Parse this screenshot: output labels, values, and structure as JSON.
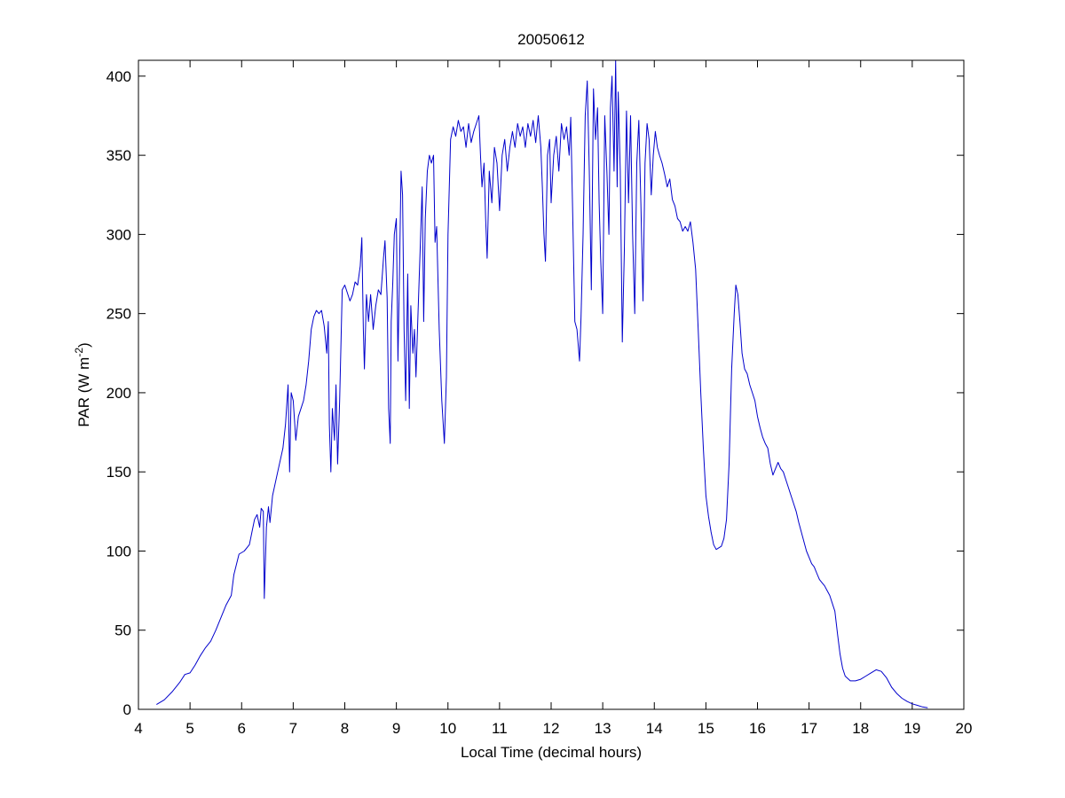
{
  "chart_data": {
    "type": "line",
    "title": "20050612",
    "xlabel": "Local Time (decimal hours)",
    "ylabel": {
      "main": "PAR (W m",
      "sup": "-2",
      "close": ")"
    },
    "xlim": [
      4,
      20
    ],
    "ylim": [
      0,
      410
    ],
    "xticks": [
      4,
      5,
      6,
      7,
      8,
      9,
      10,
      11,
      12,
      13,
      14,
      15,
      16,
      17,
      18,
      19,
      20
    ],
    "yticks": [
      0,
      50,
      100,
      150,
      200,
      250,
      300,
      350,
      400
    ],
    "grid": false,
    "legend": "none",
    "series": [
      {
        "color": "#0000cc",
        "points": [
          [
            4.35,
            3
          ],
          [
            4.5,
            6
          ],
          [
            4.65,
            11
          ],
          [
            4.8,
            17
          ],
          [
            4.9,
            22
          ],
          [
            5.0,
            23
          ],
          [
            5.1,
            28
          ],
          [
            5.2,
            34
          ],
          [
            5.3,
            39
          ],
          [
            5.4,
            43
          ],
          [
            5.5,
            50
          ],
          [
            5.6,
            58
          ],
          [
            5.7,
            66
          ],
          [
            5.8,
            72
          ],
          [
            5.85,
            85
          ],
          [
            5.95,
            98
          ],
          [
            6.05,
            100
          ],
          [
            6.15,
            104
          ],
          [
            6.2,
            112
          ],
          [
            6.25,
            120
          ],
          [
            6.3,
            123
          ],
          [
            6.35,
            115
          ],
          [
            6.38,
            127
          ],
          [
            6.42,
            125
          ],
          [
            6.44,
            70
          ],
          [
            6.48,
            115
          ],
          [
            6.52,
            128
          ],
          [
            6.55,
            118
          ],
          [
            6.6,
            135
          ],
          [
            6.7,
            150
          ],
          [
            6.8,
            165
          ],
          [
            6.85,
            180
          ],
          [
            6.9,
            205
          ],
          [
            6.93,
            150
          ],
          [
            6.96,
            200
          ],
          [
            7.0,
            195
          ],
          [
            7.05,
            170
          ],
          [
            7.1,
            185
          ],
          [
            7.15,
            190
          ],
          [
            7.2,
            195
          ],
          [
            7.25,
            205
          ],
          [
            7.3,
            220
          ],
          [
            7.35,
            240
          ],
          [
            7.4,
            248
          ],
          [
            7.45,
            252
          ],
          [
            7.5,
            250
          ],
          [
            7.55,
            252
          ],
          [
            7.6,
            242
          ],
          [
            7.65,
            225
          ],
          [
            7.68,
            245
          ],
          [
            7.7,
            180
          ],
          [
            7.73,
            150
          ],
          [
            7.76,
            190
          ],
          [
            7.8,
            170
          ],
          [
            7.83,
            205
          ],
          [
            7.86,
            155
          ],
          [
            7.9,
            195
          ],
          [
            7.95,
            265
          ],
          [
            8.0,
            268
          ],
          [
            8.05,
            263
          ],
          [
            8.1,
            258
          ],
          [
            8.15,
            262
          ],
          [
            8.2,
            270
          ],
          [
            8.25,
            268
          ],
          [
            8.3,
            280
          ],
          [
            8.33,
            298
          ],
          [
            8.36,
            240
          ],
          [
            8.38,
            215
          ],
          [
            8.42,
            262
          ],
          [
            8.46,
            245
          ],
          [
            8.5,
            262
          ],
          [
            8.55,
            240
          ],
          [
            8.6,
            255
          ],
          [
            8.65,
            265
          ],
          [
            8.7,
            262
          ],
          [
            8.75,
            285
          ],
          [
            8.78,
            296
          ],
          [
            8.82,
            260
          ],
          [
            8.85,
            190
          ],
          [
            8.88,
            168
          ],
          [
            8.9,
            245
          ],
          [
            8.93,
            270
          ],
          [
            8.96,
            300
          ],
          [
            9.0,
            310
          ],
          [
            9.03,
            220
          ],
          [
            9.06,
            275
          ],
          [
            9.09,
            340
          ],
          [
            9.12,
            325
          ],
          [
            9.15,
            240
          ],
          [
            9.18,
            195
          ],
          [
            9.22,
            275
          ],
          [
            9.25,
            190
          ],
          [
            9.28,
            255
          ],
          [
            9.32,
            225
          ],
          [
            9.35,
            240
          ],
          [
            9.38,
            210
          ],
          [
            9.42,
            250
          ],
          [
            9.46,
            290
          ],
          [
            9.5,
            330
          ],
          [
            9.53,
            245
          ],
          [
            9.56,
            310
          ],
          [
            9.6,
            340
          ],
          [
            9.64,
            350
          ],
          [
            9.68,
            345
          ],
          [
            9.72,
            350
          ],
          [
            9.75,
            295
          ],
          [
            9.78,
            305
          ],
          [
            9.83,
            240
          ],
          [
            9.88,
            195
          ],
          [
            9.93,
            168
          ],
          [
            9.97,
            210
          ],
          [
            10.0,
            300
          ],
          [
            10.05,
            360
          ],
          [
            10.1,
            368
          ],
          [
            10.15,
            362
          ],
          [
            10.2,
            372
          ],
          [
            10.25,
            365
          ],
          [
            10.3,
            368
          ],
          [
            10.35,
            355
          ],
          [
            10.4,
            370
          ],
          [
            10.45,
            358
          ],
          [
            10.5,
            365
          ],
          [
            10.55,
            370
          ],
          [
            10.6,
            375
          ],
          [
            10.63,
            350
          ],
          [
            10.66,
            330
          ],
          [
            10.7,
            345
          ],
          [
            10.73,
            310
          ],
          [
            10.76,
            285
          ],
          [
            10.8,
            340
          ],
          [
            10.85,
            320
          ],
          [
            10.9,
            355
          ],
          [
            10.95,
            345
          ],
          [
            11.0,
            315
          ],
          [
            11.05,
            350
          ],
          [
            11.1,
            360
          ],
          [
            11.15,
            340
          ],
          [
            11.2,
            355
          ],
          [
            11.25,
            365
          ],
          [
            11.3,
            355
          ],
          [
            11.35,
            370
          ],
          [
            11.4,
            362
          ],
          [
            11.45,
            368
          ],
          [
            11.5,
            355
          ],
          [
            11.55,
            370
          ],
          [
            11.6,
            362
          ],
          [
            11.65,
            372
          ],
          [
            11.7,
            358
          ],
          [
            11.75,
            375
          ],
          [
            11.8,
            355
          ],
          [
            11.83,
            330
          ],
          [
            11.86,
            300
          ],
          [
            11.89,
            283
          ],
          [
            11.93,
            350
          ],
          [
            11.97,
            360
          ],
          [
            12.0,
            320
          ],
          [
            12.05,
            350
          ],
          [
            12.1,
            362
          ],
          [
            12.15,
            340
          ],
          [
            12.2,
            370
          ],
          [
            12.25,
            360
          ],
          [
            12.3,
            368
          ],
          [
            12.35,
            350
          ],
          [
            12.38,
            374
          ],
          [
            12.42,
            310
          ],
          [
            12.46,
            245
          ],
          [
            12.5,
            240
          ],
          [
            12.55,
            220
          ],
          [
            12.58,
            248
          ],
          [
            12.62,
            300
          ],
          [
            12.66,
            375
          ],
          [
            12.7,
            397
          ],
          [
            12.74,
            340
          ],
          [
            12.78,
            265
          ],
          [
            12.82,
            392
          ],
          [
            12.86,
            360
          ],
          [
            12.9,
            380
          ],
          [
            12.93,
            320
          ],
          [
            12.96,
            285
          ],
          [
            13.0,
            250
          ],
          [
            13.04,
            375
          ],
          [
            13.08,
            340
          ],
          [
            13.12,
            300
          ],
          [
            13.15,
            380
          ],
          [
            13.18,
            400
          ],
          [
            13.22,
            340
          ],
          [
            13.25,
            410
          ],
          [
            13.28,
            330
          ],
          [
            13.3,
            390
          ],
          [
            13.34,
            340
          ],
          [
            13.38,
            232
          ],
          [
            13.42,
            290
          ],
          [
            13.46,
            378
          ],
          [
            13.5,
            320
          ],
          [
            13.54,
            375
          ],
          [
            13.58,
            300
          ],
          [
            13.62,
            250
          ],
          [
            13.66,
            345
          ],
          [
            13.7,
            372
          ],
          [
            13.74,
            320
          ],
          [
            13.78,
            258
          ],
          [
            13.82,
            345
          ],
          [
            13.86,
            370
          ],
          [
            13.9,
            360
          ],
          [
            13.94,
            325
          ],
          [
            13.98,
            350
          ],
          [
            14.02,
            365
          ],
          [
            14.06,
            355
          ],
          [
            14.1,
            350
          ],
          [
            14.15,
            345
          ],
          [
            14.2,
            338
          ],
          [
            14.25,
            330
          ],
          [
            14.3,
            335
          ],
          [
            14.35,
            322
          ],
          [
            14.4,
            318
          ],
          [
            14.45,
            310
          ],
          [
            14.5,
            308
          ],
          [
            14.55,
            302
          ],
          [
            14.6,
            305
          ],
          [
            14.65,
            302
          ],
          [
            14.7,
            308
          ],
          [
            14.75,
            295
          ],
          [
            14.8,
            278
          ],
          [
            14.85,
            240
          ],
          [
            14.9,
            200
          ],
          [
            14.95,
            165
          ],
          [
            15.0,
            135
          ],
          [
            15.05,
            122
          ],
          [
            15.1,
            112
          ],
          [
            15.15,
            104
          ],
          [
            15.2,
            101
          ],
          [
            15.3,
            103
          ],
          [
            15.35,
            108
          ],
          [
            15.4,
            120
          ],
          [
            15.45,
            155
          ],
          [
            15.5,
            215
          ],
          [
            15.55,
            250
          ],
          [
            15.58,
            268
          ],
          [
            15.62,
            262
          ],
          [
            15.66,
            245
          ],
          [
            15.7,
            225
          ],
          [
            15.75,
            215
          ],
          [
            15.8,
            212
          ],
          [
            15.85,
            205
          ],
          [
            15.9,
            200
          ],
          [
            15.95,
            195
          ],
          [
            16.0,
            185
          ],
          [
            16.05,
            178
          ],
          [
            16.1,
            172
          ],
          [
            16.15,
            168
          ],
          [
            16.2,
            165
          ],
          [
            16.25,
            155
          ],
          [
            16.3,
            148
          ],
          [
            16.35,
            152
          ],
          [
            16.4,
            156
          ],
          [
            16.45,
            152
          ],
          [
            16.5,
            150
          ],
          [
            16.55,
            145
          ],
          [
            16.6,
            140
          ],
          [
            16.65,
            135
          ],
          [
            16.7,
            130
          ],
          [
            16.75,
            125
          ],
          [
            16.8,
            118
          ],
          [
            16.85,
            112
          ],
          [
            16.9,
            106
          ],
          [
            16.95,
            100
          ],
          [
            17.0,
            96
          ],
          [
            17.05,
            92
          ],
          [
            17.1,
            90
          ],
          [
            17.15,
            86
          ],
          [
            17.2,
            82
          ],
          [
            17.25,
            80
          ],
          [
            17.3,
            78
          ],
          [
            17.35,
            75
          ],
          [
            17.4,
            72
          ],
          [
            17.5,
            62
          ],
          [
            17.55,
            48
          ],
          [
            17.6,
            35
          ],
          [
            17.65,
            26
          ],
          [
            17.7,
            21
          ],
          [
            17.8,
            18
          ],
          [
            17.9,
            18
          ],
          [
            18.0,
            19
          ],
          [
            18.1,
            21
          ],
          [
            18.2,
            23
          ],
          [
            18.3,
            25
          ],
          [
            18.4,
            24
          ],
          [
            18.5,
            20
          ],
          [
            18.6,
            14
          ],
          [
            18.7,
            10
          ],
          [
            18.8,
            7
          ],
          [
            18.9,
            5
          ],
          [
            19.0,
            3.5
          ],
          [
            19.1,
            2.5
          ],
          [
            19.2,
            1.5
          ],
          [
            19.3,
            1
          ]
        ]
      }
    ]
  }
}
